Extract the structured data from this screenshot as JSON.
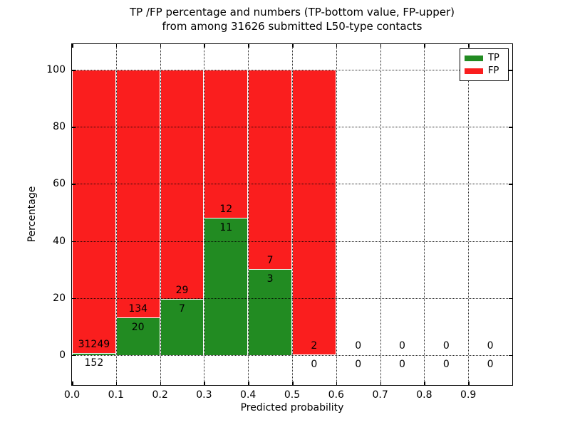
{
  "title": {
    "line1": "TP /FP percentage and numbers (TP-bottom value, FP-upper)",
    "line2": "from among 31626 submitted L50-type contacts"
  },
  "axes": {
    "xlabel": "Predicted probability",
    "ylabel": "Percentage",
    "xtick_labels": [
      "0.0",
      "0.1",
      "0.2",
      "0.3",
      "0.4",
      "0.5",
      "0.6",
      "0.7",
      "0.8",
      "0.9"
    ],
    "xtick_values": [
      0.0,
      0.1,
      0.2,
      0.3,
      0.4,
      0.5,
      0.6,
      0.7,
      0.8,
      0.9
    ],
    "ytick_labels": [
      "0",
      "20",
      "40",
      "60",
      "80",
      "100"
    ],
    "ytick_values": [
      0,
      20,
      40,
      60,
      80,
      100
    ],
    "xlim": [
      0.0,
      1.0
    ],
    "ylim": [
      -10.5,
      109
    ],
    "grid_style": "dotted"
  },
  "legend": {
    "position": "upper right",
    "items": [
      {
        "label": "TP",
        "color": "#228b22"
      },
      {
        "label": "FP",
        "color": "#fa1e1e"
      }
    ]
  },
  "chart_data": {
    "type": "bar",
    "subtype": "stacked-percentage-histogram",
    "title": "TP /FP percentage and numbers (TP-bottom value, FP-upper) from among 31626 submitted L50-type contacts",
    "xlabel": "Predicted probability",
    "ylabel": "Percentage",
    "total_submitted": 31626,
    "bin_width": 0.1,
    "categories": [
      "0.0-0.1",
      "0.1-0.2",
      "0.2-0.3",
      "0.3-0.4",
      "0.4-0.5",
      "0.5-0.6",
      "0.6-0.7",
      "0.7-0.8",
      "0.8-0.9",
      "0.9-1.0"
    ],
    "series": [
      {
        "name": "TP",
        "color": "#228b22",
        "counts": [
          152,
          20,
          7,
          11,
          3,
          0,
          0,
          0,
          0,
          0
        ]
      },
      {
        "name": "FP",
        "color": "#fa1e1e",
        "counts": [
          31249,
          134,
          29,
          12,
          7,
          2,
          0,
          0,
          0,
          0
        ]
      }
    ],
    "tp_percent_of_bin": [
      0.48,
      12.99,
      19.44,
      47.83,
      30.0,
      0.0,
      null,
      null,
      null,
      null
    ],
    "stacked_bar_top_percent": 100,
    "label_rule": "TP count printed below green top, FP count printed above green top"
  },
  "colors": {
    "tp_green": "#228b22",
    "fp_red": "#fa1e1e",
    "background": "#ffffff",
    "grid": "#000000",
    "bar_edge": "#ffffff"
  }
}
